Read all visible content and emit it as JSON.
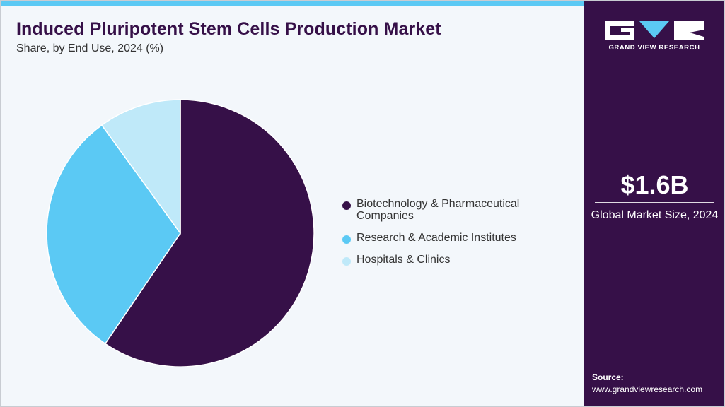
{
  "header": {
    "title": "Induced Pluripotent Stem Cells Production Market",
    "subtitle": "Share, by End Use, 2024 (%)"
  },
  "chart_data": {
    "type": "pie",
    "title": "Induced Pluripotent Stem Cells Production Market",
    "subtitle": "Share, by End Use, 2024 (%)",
    "categories": [
      "Biotechnology & Pharmaceutical Companies",
      "Research & Academic Institutes",
      "Hospitals & Clinics"
    ],
    "values": [
      59.5,
      30.5,
      10.0
    ],
    "colors": [
      "#361048",
      "#5bc9f4",
      "#bfe9f9"
    ],
    "legend_position": "right"
  },
  "sidebar": {
    "logo_text": "GRAND VIEW RESEARCH",
    "market_value": "$1.6B",
    "market_label": "Global Market Size, 2024",
    "source_label": "Source:",
    "source_url": "www.grandviewresearch.com"
  },
  "colors": {
    "brand_dark": "#361048",
    "accent": "#5bc9f4",
    "accent_light": "#bfe9f9"
  }
}
